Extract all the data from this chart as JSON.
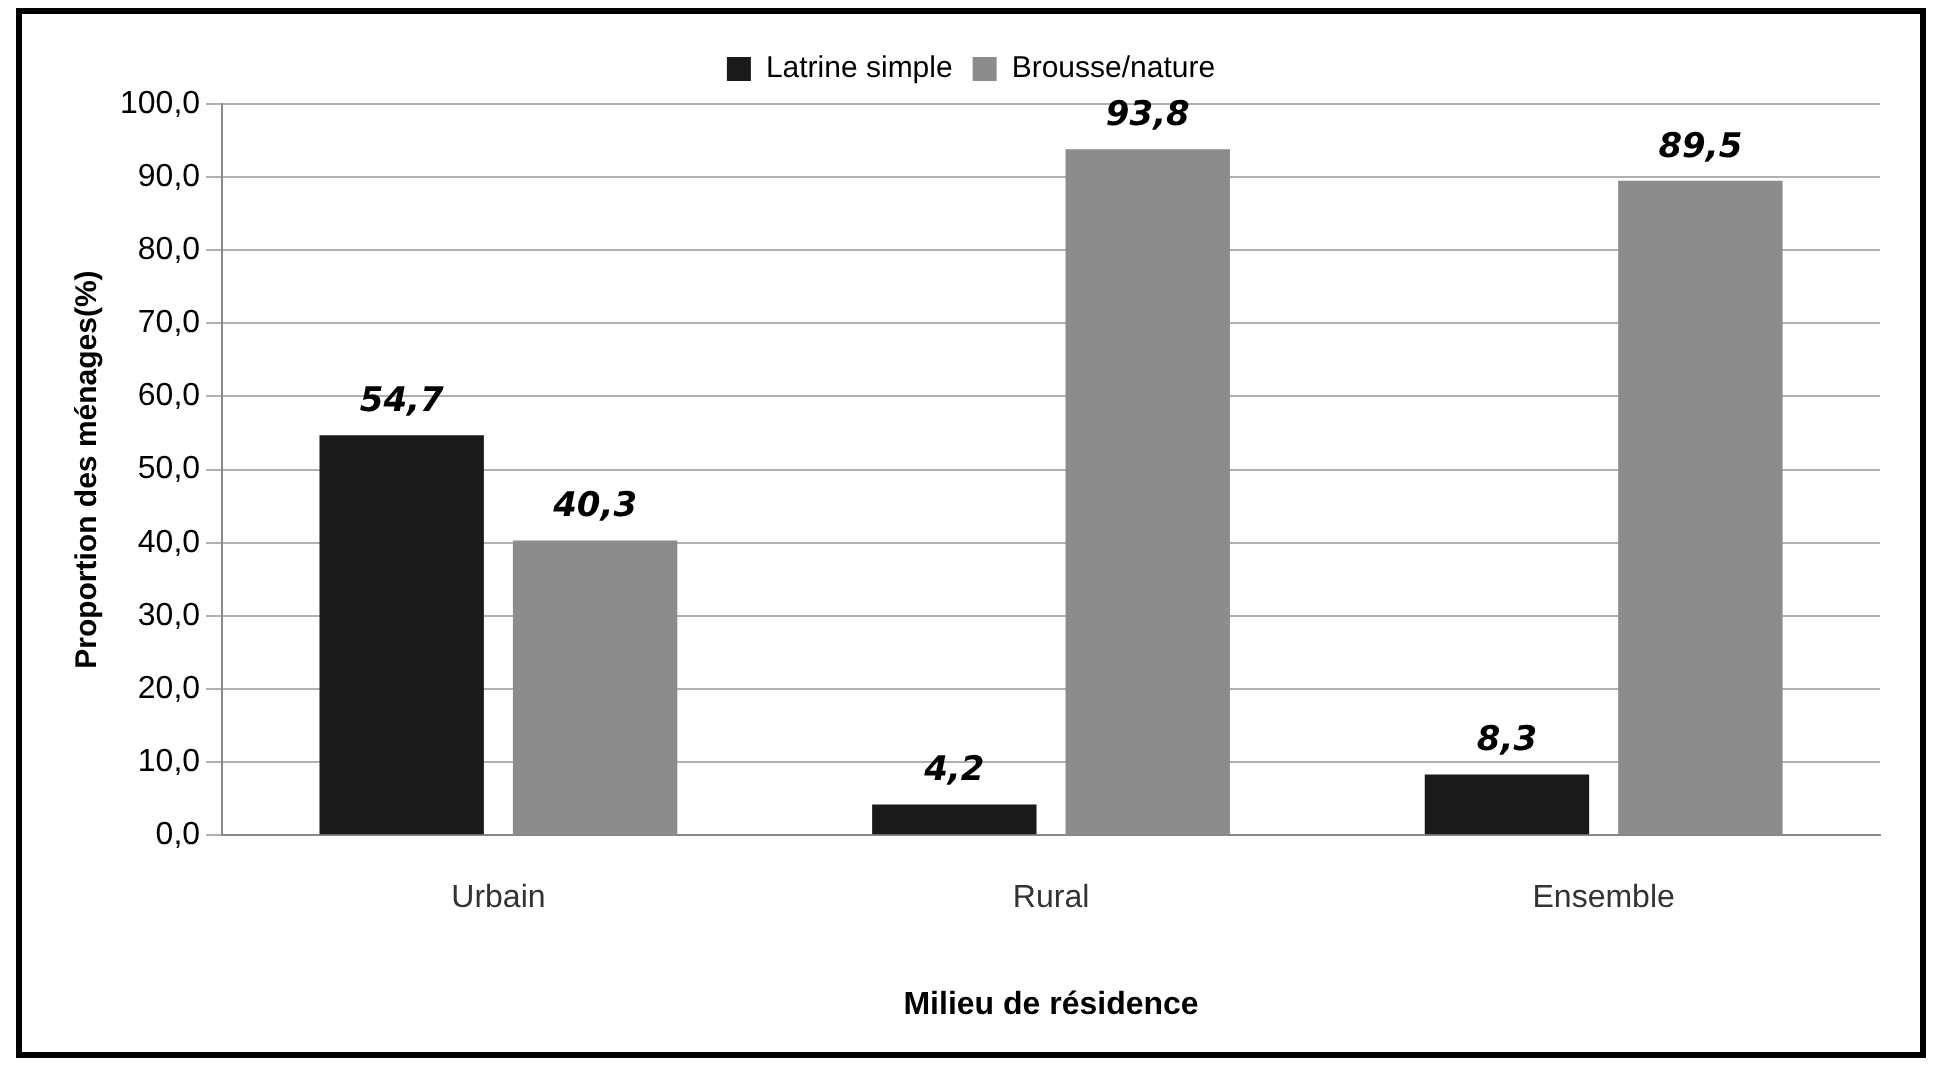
{
  "chart_data": {
    "type": "bar",
    "xlabel": "Milieu de résidence",
    "ylabel": "Proportion des ménages(%)",
    "categories": [
      "Urbain",
      "Rural",
      "Ensemble"
    ],
    "series": [
      {
        "name": "Latrine simple",
        "color": "#1a1a1a",
        "values": [
          54.7,
          4.2,
          8.3
        ],
        "value_labels": [
          "54,7",
          "4,2",
          "8,3"
        ]
      },
      {
        "name": "Brousse/nature",
        "color": "#8c8c8c",
        "values": [
          40.3,
          93.8,
          89.5
        ],
        "value_labels": [
          "40,3",
          "93,8",
          "89,5"
        ]
      }
    ],
    "ylim": [
      0,
      100
    ],
    "yticks": [
      {
        "value": 0,
        "label": "0,0"
      },
      {
        "value": 10,
        "label": "10,0"
      },
      {
        "value": 20,
        "label": "20,0"
      },
      {
        "value": 30,
        "label": "30,0"
      },
      {
        "value": 40,
        "label": "40,0"
      },
      {
        "value": 50,
        "label": "50,0"
      },
      {
        "value": 60,
        "label": "60,0"
      },
      {
        "value": 70,
        "label": "70,0"
      },
      {
        "value": 80,
        "label": "80,0"
      },
      {
        "value": 90,
        "label": "90,0"
      },
      {
        "value": 100,
        "label": "100,0"
      }
    ],
    "grid": "y",
    "legend": "top"
  }
}
